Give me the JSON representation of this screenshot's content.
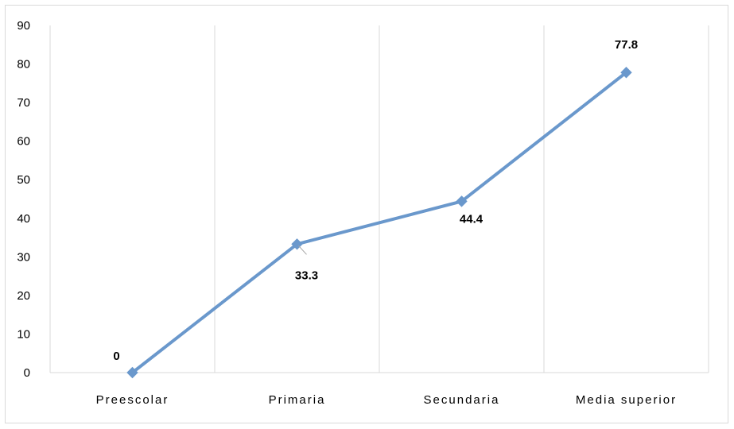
{
  "chart_data": {
    "type": "line",
    "title": "",
    "xlabel": "",
    "ylabel": "",
    "categories": [
      "Preescolar",
      "Primaria",
      "Secundaria",
      "Media superior"
    ],
    "series": [
      {
        "values": [
          0,
          33.3,
          44.4,
          77.8
        ],
        "data_labels": [
          "0",
          "33.3",
          "44.4",
          "77.8"
        ],
        "color": "#6a98cc"
      }
    ],
    "ylim": [
      0,
      90
    ],
    "yticks": [
      "0",
      "10",
      "20",
      "30",
      "40",
      "50",
      "60",
      "70",
      "80",
      "90"
    ],
    "grid": "vertical",
    "grid_color": "#d9d9d9",
    "legend": "none"
  }
}
